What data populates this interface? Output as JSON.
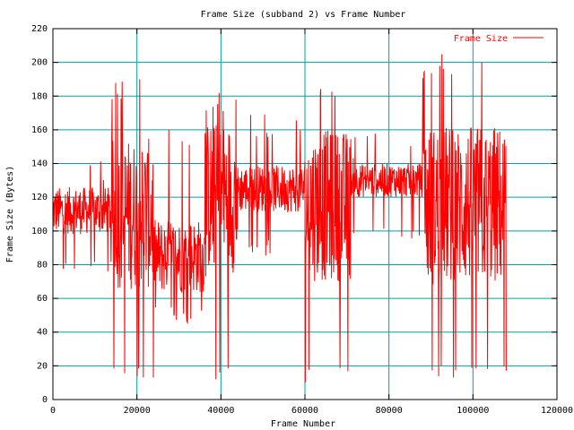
{
  "chart_data": {
    "type": "line",
    "title": "Frame Size (subband 2) vs Frame Number",
    "xlabel": "Frame Number",
    "ylabel": "Frame Size (Bytes)",
    "xlim": [
      0,
      120000
    ],
    "ylim": [
      0,
      220
    ],
    "x_ticks": [
      0,
      20000,
      40000,
      60000,
      80000,
      100000,
      120000
    ],
    "y_ticks": [
      0,
      20,
      40,
      60,
      80,
      100,
      120,
      140,
      160,
      180,
      200,
      220
    ],
    "grid": true,
    "legend_position": "top-right",
    "series": [
      {
        "name": "Frame Size",
        "color": "#ff0000",
        "segments": [
          {
            "x_start": 0,
            "x_end": 14000,
            "base": 112,
            "spread": 14,
            "min": 75,
            "max": 145
          },
          {
            "x_start": 14000,
            "x_end": 24000,
            "base": 110,
            "spread": 45,
            "min": 10,
            "max": 192
          },
          {
            "x_start": 24000,
            "x_end": 36500,
            "base": 85,
            "spread": 22,
            "min": 45,
            "max": 162
          },
          {
            "x_start": 36500,
            "x_end": 44000,
            "base": 120,
            "spread": 45,
            "min": 10,
            "max": 185
          },
          {
            "x_start": 44000,
            "x_end": 60000,
            "base": 125,
            "spread": 14,
            "min": 85,
            "max": 170
          },
          {
            "x_start": 60000,
            "x_end": 71000,
            "base": 115,
            "spread": 45,
            "min": 10,
            "max": 193
          },
          {
            "x_start": 71000,
            "x_end": 88000,
            "base": 130,
            "spread": 10,
            "min": 95,
            "max": 158
          },
          {
            "x_start": 88000,
            "x_end": 108000,
            "base": 115,
            "spread": 48,
            "min": 10,
            "max": 205
          }
        ]
      }
    ]
  }
}
